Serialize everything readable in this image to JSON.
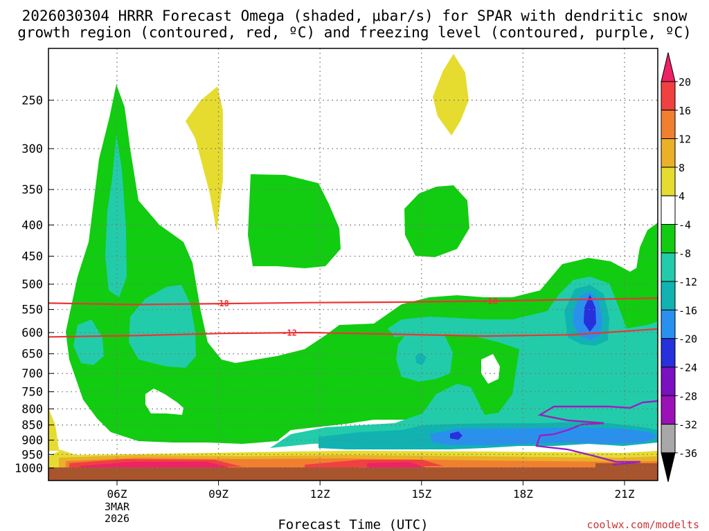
{
  "chart_data": {
    "type": "contour",
    "title_line1": "2026030304 HRRR Forecast Omega (shaded, μbar/s) for SPAR with dendritic snow",
    "title_line2": "growth region (contoured, red, ºC) and freezing level (contoured, purple, ºC)",
    "xlabel": "Forecast Time (UTC)",
    "ylabel": "",
    "x_ticks": [
      "06Z",
      "09Z",
      "12Z",
      "15Z",
      "18Z",
      "21Z"
    ],
    "x_date_line1": "3MAR",
    "x_date_line2": "2026",
    "y_ticks": [
      250,
      300,
      350,
      400,
      450,
      500,
      550,
      600,
      650,
      700,
      750,
      800,
      850,
      900,
      950,
      1000
    ],
    "colorbar_levels": [
      20,
      16,
      12,
      8,
      4,
      -4,
      -8,
      -12,
      -16,
      -20,
      -24,
      -28,
      -32,
      -36
    ],
    "colorbar_colors": [
      "#ee2266",
      "#f04040",
      "#f08030",
      "#eab028",
      "#e6dc30",
      "#ffffff",
      "#11cc11",
      "#22ccaa",
      "#11b2b2",
      "#2a90ee",
      "#2630dd",
      "#7a10c0",
      "#9c10b8",
      "#a8a8a8",
      "#000000"
    ],
    "contour_labels": [
      "-18",
      "-12",
      "-18"
    ],
    "dendritic_isotherms": [
      {
        "value": -18,
        "pressure_hPa": [
          537,
          540,
          538,
          536,
          535,
          533,
          530,
          527
        ]
      },
      {
        "value": -12,
        "pressure_hPa": [
          610,
          607,
          602,
          600,
          604,
          608,
          605,
          592
        ]
      }
    ],
    "source": "coolwx.com/modelts",
    "colors": {
      "background": "#ffffff",
      "ground": "#a8542c",
      "isotherm": "#ee3333",
      "freezing_level": "#9a20c0",
      "grid": "#777777"
    }
  }
}
